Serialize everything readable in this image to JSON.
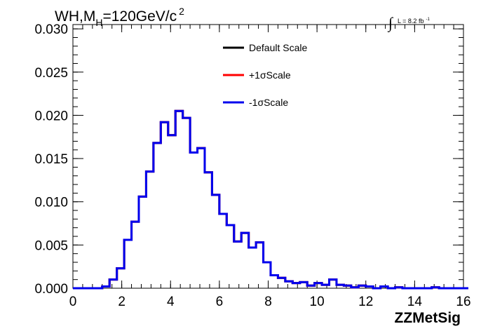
{
  "chart_data": {
    "type": "line",
    "title_parts": {
      "a": "WH,M",
      "sub": "H",
      "b": "=120GeV/c",
      "sup": "2"
    },
    "lumi_label": "L = 8.2 fb",
    "lumi_sup": "-1",
    "integral_symbol": "∫",
    "xlabel": "ZZMetSig",
    "ylabel": "",
    "xlim": [
      0,
      16
    ],
    "ylim": [
      0,
      0.0305
    ],
    "xticks": [
      {
        "v": 0,
        "label": "0"
      },
      {
        "v": 2,
        "label": "2"
      },
      {
        "v": 4,
        "label": "4"
      },
      {
        "v": 6,
        "label": "6"
      },
      {
        "v": 8,
        "label": "8"
      },
      {
        "v": 10,
        "label": "10"
      },
      {
        "v": 12,
        "label": "12"
      },
      {
        "v": 14,
        "label": "14"
      },
      {
        "v": 16,
        "label": "16"
      }
    ],
    "yticks": [
      {
        "v": 0,
        "label": "0.000"
      },
      {
        "v": 0.005,
        "label": "0.005"
      },
      {
        "v": 0.01,
        "label": "0.010"
      },
      {
        "v": 0.015,
        "label": "0.015"
      },
      {
        "v": 0.02,
        "label": "0.020"
      },
      {
        "v": 0.025,
        "label": "0.025"
      },
      {
        "v": 0.03,
        "label": "0.030"
      }
    ],
    "bin_width": 0.3,
    "bin_edges_start": 0,
    "grid": false,
    "legend_position": "top-center",
    "series": [
      {
        "name": "Default Scale",
        "color": "#000000",
        "values": [
          0,
          0,
          0,
          0,
          0.0002,
          0.001,
          0.0023,
          0.0056,
          0.0077,
          0.0106,
          0.0135,
          0.0168,
          0.0192,
          0.0177,
          0.0205,
          0.0197,
          0.0157,
          0.0162,
          0.0134,
          0.0108,
          0.0086,
          0.0073,
          0.0054,
          0.0064,
          0.0047,
          0.0053,
          0.003,
          0.0015,
          0.0012,
          0.0008,
          0.0006,
          0.0007,
          0.0003,
          0.0006,
          0.0004,
          0.001,
          0.0004,
          0.0003,
          0.0001,
          0.0003,
          0.0002,
          0,
          0.0002,
          0,
          0.0001,
          0,
          0,
          0,
          0,
          0.0001,
          0,
          0,
          0,
          0
        ]
      },
      {
        "name": "+1σScale",
        "color": "#ff0000",
        "values": [
          0,
          0,
          0,
          0,
          0.0002,
          0.001,
          0.0023,
          0.0056,
          0.0077,
          0.0106,
          0.0135,
          0.0168,
          0.0192,
          0.0177,
          0.0205,
          0.0197,
          0.0157,
          0.0162,
          0.0134,
          0.0108,
          0.0086,
          0.0073,
          0.0054,
          0.0064,
          0.0047,
          0.0053,
          0.003,
          0.0015,
          0.0012,
          0.0008,
          0.0006,
          0.0007,
          0.0003,
          0.0006,
          0.0004,
          0.001,
          0.0004,
          0.0003,
          0.0001,
          0.0003,
          0.0002,
          0,
          0.0002,
          0,
          0.0001,
          0,
          0,
          0,
          0,
          0.0001,
          0,
          0,
          0,
          0
        ]
      },
      {
        "name": "-1σScale",
        "color": "#0000ee",
        "values": [
          0,
          0,
          0,
          0,
          0.0002,
          0.001,
          0.0023,
          0.0056,
          0.0077,
          0.0106,
          0.0135,
          0.0168,
          0.0192,
          0.0177,
          0.0205,
          0.0197,
          0.0157,
          0.0162,
          0.0134,
          0.0108,
          0.0086,
          0.0073,
          0.0054,
          0.0064,
          0.0047,
          0.0053,
          0.003,
          0.0015,
          0.0012,
          0.0008,
          0.0006,
          0.0007,
          0.0003,
          0.0006,
          0.0004,
          0.001,
          0.0004,
          0.0003,
          0.0001,
          0.0003,
          0.0002,
          0,
          0.0002,
          0,
          0.0001,
          0,
          0,
          0,
          0,
          0.0001,
          0,
          0,
          0,
          0
        ]
      }
    ]
  }
}
